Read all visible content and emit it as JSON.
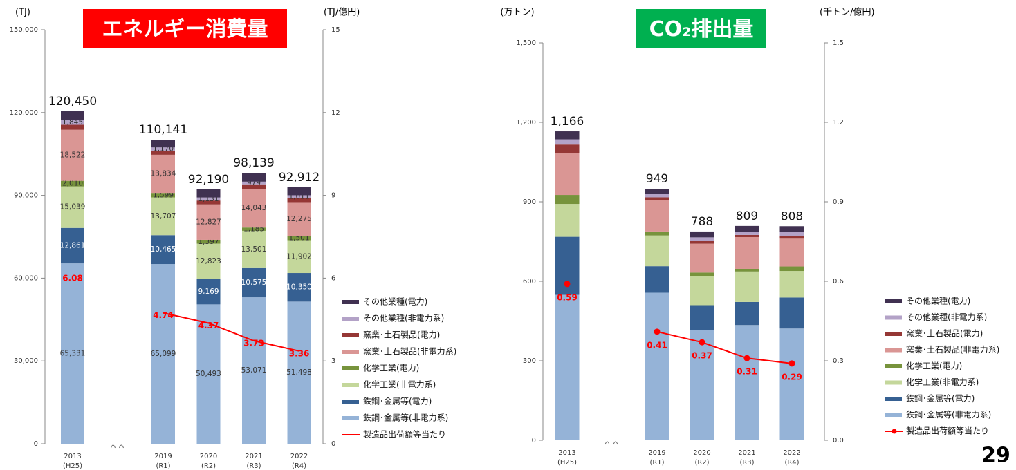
{
  "page_number": "29",
  "chart_data": [
    {
      "type": "bar",
      "stacked": true,
      "title": "エネルギー消費量",
      "title_color": "#ff0000",
      "ylabel": "(TJ)",
      "y2label": "(TJ/億円)",
      "categories": [
        "2013",
        "2019",
        "2020",
        "2021",
        "2022"
      ],
      "sublabels": [
        "(H25)",
        "(R1)",
        "(R2)",
        "(R3)",
        "(R4)"
      ],
      "axis_break_after": 0,
      "ylim": [
        0,
        150000
      ],
      "yticks": [
        0,
        {
          "value": 30000,
          "label": "30,000"
        },
        {
          "value": 60000,
          "label": "60,000"
        },
        {
          "value": 90000,
          "label": "90,000"
        },
        {
          "value": 120000,
          "label": "120,000"
        },
        {
          "value": 150000,
          "label": "150,000"
        }
      ],
      "y2lim": [
        0,
        15
      ],
      "y2ticks": [
        0,
        3,
        6,
        9,
        12,
        15
      ],
      "totals": [
        120450,
        110141,
        92190,
        98139,
        92912
      ],
      "total_labels": [
        "120,450",
        "110,141",
        "92,190",
        "98,139",
        "92,912"
      ],
      "markers": false,
      "series": [
        {
          "name": "鉄鋼･金属等(非電力系)",
          "color": "#95b3d7",
          "values": [
            65331,
            65099,
            50493,
            53071,
            51498
          ],
          "value_labels": [
            "65,331",
            "65,099",
            "50,493",
            "53,071",
            "51,498"
          ]
        },
        {
          "name": "鉄鋼･金属等(電力)",
          "color": "#366092",
          "values": [
            12861,
            10465,
            9169,
            10575,
            10350
          ],
          "value_labels": [
            "12,861",
            "10,465",
            "9,169",
            "10,575",
            "10,350"
          ]
        },
        {
          "name": "化学工業(非電力系)",
          "color": "#c4d79b",
          "values": [
            15039,
            13707,
            12823,
            13501,
            11902
          ],
          "value_labels": [
            "15,039",
            "13,707",
            "12,823",
            "13,501",
            "11,902"
          ]
        },
        {
          "name": "化学工業(電力)",
          "color": "#77933c",
          "values": [
            2010,
            1599,
            1397,
            1185,
            1501
          ],
          "value_labels": [
            "2,010",
            "1,599",
            "1,397",
            "1,185",
            "1,501"
          ]
        },
        {
          "name": "窯業･土石製品(非電力系)",
          "color": "#da9694",
          "values": [
            18522,
            13834,
            12827,
            14043,
            12275
          ],
          "value_labels": [
            "18,522",
            "13,834",
            "12,827",
            "14,043",
            "12,275"
          ]
        },
        {
          "name": "窯業･土石製品(電力)",
          "color": "#953735",
          "values": [
            1800,
            1500,
            1400,
            1600,
            1500
          ]
        },
        {
          "name": "その他業種(非電力系)",
          "color": "#b3a2c7",
          "values": [
            1845,
            1170,
            1131,
            979,
            1011
          ],
          "value_labels": [
            "1,845",
            "1,170",
            "1,131",
            "979",
            "1,011"
          ]
        },
        {
          "name": "その他業種(電力)",
          "color": "#403151",
          "values": [
            3042,
            2767,
            2950,
            3185,
            2875
          ]
        },
        {
          "name": "製造品出荷額等当たり",
          "type": "line",
          "axis": "y2",
          "color": "#ff0000",
          "values": [
            6.08,
            4.74,
            4.37,
            3.73,
            3.36
          ]
        }
      ]
    },
    {
      "type": "bar",
      "stacked": true,
      "title": "CO₂排出量",
      "title_color": "#00b050",
      "ylabel": "(万トン)",
      "y2label": "(千トン/億円)",
      "categories": [
        "2013",
        "2019",
        "2020",
        "2021",
        "2022"
      ],
      "sublabels": [
        "(H25)",
        "(R1)",
        "(R2)",
        "(R3)",
        "(R4)"
      ],
      "axis_break_after": 0,
      "ylim": [
        0,
        1500
      ],
      "yticks": [
        0,
        300,
        600,
        900,
        {
          "value": 1200,
          "label": "1,200"
        },
        {
          "value": 1500,
          "label": "1,500"
        }
      ],
      "y2lim": [
        0,
        1.5
      ],
      "y2ticks": [
        {
          "value": 0,
          "label": "0.0"
        },
        0.3,
        0.6,
        0.9,
        1.2,
        1.5
      ],
      "totals": [
        1166,
        949,
        788,
        809,
        808
      ],
      "total_labels": [
        "1,166",
        "949",
        "788",
        "809",
        "808"
      ],
      "markers": true,
      "series": [
        {
          "name": "鉄鋼･金属等(非電力系)",
          "color": "#95b3d7",
          "values": [
            549,
            557,
            417,
            435,
            422
          ]
        },
        {
          "name": "鉄鋼･金属等(電力)",
          "color": "#366092",
          "values": [
            219,
            100,
            93,
            87,
            117
          ]
        },
        {
          "name": "化学工業(非電力系)",
          "color": "#c4d79b",
          "values": [
            124,
            116,
            109,
            115,
            100
          ]
        },
        {
          "name": "化学工業(電力)",
          "color": "#77933c",
          "values": [
            34,
            15,
            14,
            10,
            17
          ]
        },
        {
          "name": "窯業･土石製品(非電力系)",
          "color": "#da9694",
          "values": [
            159,
            118,
            109,
            120,
            105
          ]
        },
        {
          "name": "窯業･土石製品(電力)",
          "color": "#953735",
          "values": [
            31,
            11,
            11,
            8,
            11
          ]
        },
        {
          "name": "その他業種(非電力系)",
          "color": "#b3a2c7",
          "values": [
            20,
            12,
            13,
            12,
            14
          ]
        },
        {
          "name": "その他業種(電力)",
          "color": "#403151",
          "values": [
            30,
            20,
            22,
            22,
            22
          ]
        },
        {
          "name": "製造品出荷額等当たり",
          "type": "line",
          "axis": "y2",
          "color": "#ff0000",
          "values": [
            0.59,
            0.41,
            0.37,
            0.31,
            0.29
          ]
        }
      ]
    }
  ]
}
